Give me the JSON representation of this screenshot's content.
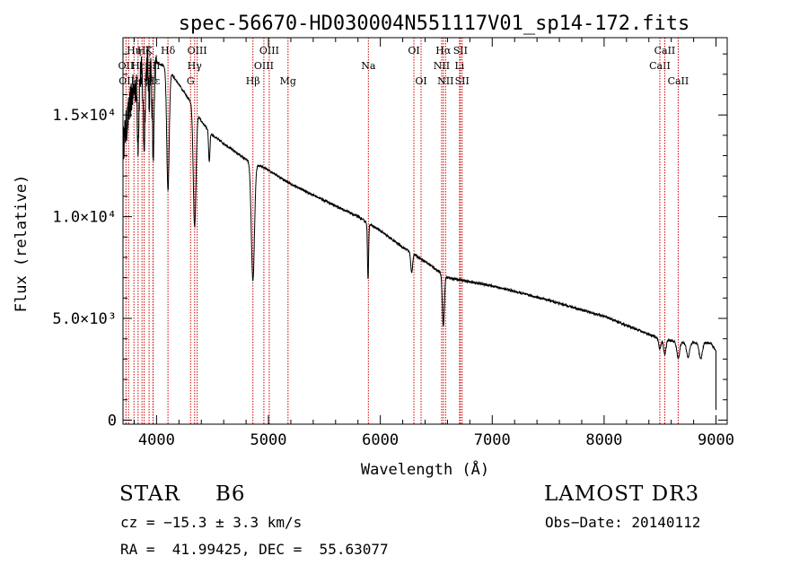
{
  "chart_data": {
    "type": "line",
    "title": "spec-56670-HD030004N551117V01_sp14-172.fits",
    "xlabel": "Wavelength (Å)",
    "ylabel": "Flux (relative)",
    "xlim": [
      3700,
      9100
    ],
    "ylim": [
      -200,
      18800
    ],
    "x_ticks": [
      4000,
      5000,
      6000,
      7000,
      8000,
      9000
    ],
    "x_tick_labels": [
      "4000",
      "5000",
      "6000",
      "7000",
      "8000",
      "9000"
    ],
    "y_ticks": [
      0,
      5000,
      10000,
      15000
    ],
    "y_tick_labels": [
      "0",
      "5.0×10³",
      "1.0×10⁴",
      "1.5×10⁴"
    ],
    "continuum": [
      [
        3700,
        13500
      ],
      [
        3780,
        16000
      ],
      [
        3900,
        17500
      ],
      [
        4000,
        17600
      ],
      [
        4100,
        17300
      ],
      [
        4200,
        16500
      ],
      [
        4300,
        15700
      ],
      [
        4400,
        14700
      ],
      [
        4500,
        14000
      ],
      [
        4700,
        13200
      ],
      [
        4800,
        12800
      ],
      [
        5000,
        12300
      ],
      [
        5200,
        11600
      ],
      [
        5500,
        10800
      ],
      [
        5800,
        10000
      ],
      [
        6000,
        9300
      ],
      [
        6200,
        8500
      ],
      [
        6400,
        7800
      ],
      [
        6600,
        7000
      ],
      [
        7000,
        6600
      ],
      [
        7500,
        5900
      ],
      [
        8000,
        5100
      ],
      [
        8500,
        4000
      ],
      [
        8700,
        3800
      ],
      [
        8950,
        3800
      ],
      [
        9000,
        3400
      ]
    ],
    "absorption_lines": [
      {
        "center": 3835,
        "depth": 3000,
        "width": 7
      },
      {
        "center": 3889,
        "depth": 3800,
        "width": 8
      },
      {
        "center": 3933,
        "depth": 2000,
        "width": 5
      },
      {
        "center": 3970,
        "depth": 4600,
        "width": 9
      },
      {
        "center": 4102,
        "depth": 6000,
        "width": 11
      },
      {
        "center": 4340,
        "depth": 5800,
        "width": 12
      },
      {
        "center": 4471,
        "depth": 1500,
        "width": 6
      },
      {
        "center": 4861,
        "depth": 5800,
        "width": 14
      },
      {
        "center": 5890,
        "depth": 2800,
        "width": 5
      },
      {
        "center": 6280,
        "depth": 1000,
        "width": 8
      },
      {
        "center": 6563,
        "depth": 2500,
        "width": 9
      },
      {
        "center": 8498,
        "depth": 500,
        "width": 10
      },
      {
        "center": 8542,
        "depth": 700,
        "width": 11
      },
      {
        "center": 8662,
        "depth": 800,
        "width": 12
      },
      {
        "center": 8750,
        "depth": 700,
        "width": 13
      },
      {
        "center": 8863,
        "depth": 800,
        "width": 14
      }
    ],
    "reference_lines": [
      {
        "wave": 3727,
        "label": "OII",
        "row": 2
      },
      {
        "wave": 3750,
        "label": "OIII",
        "row": 3
      },
      {
        "wave": 3798,
        "label": "Hη",
        "row": 1
      },
      {
        "wave": 3835,
        "label": "Hε",
        "row": 2
      },
      {
        "wave": 3870,
        "label": "Hγ",
        "row": 3
      },
      {
        "wave": 3889,
        "label": "Hζ",
        "row": 1
      },
      {
        "wave": 3933,
        "label": "K",
        "row": 1
      },
      {
        "wave": 3968,
        "label": "SII",
        "row": 2
      },
      {
        "wave": 3970,
        "label": "Hε",
        "row": 3
      },
      {
        "wave": 4102,
        "label": "Hδ",
        "row": 1
      },
      {
        "wave": 4304,
        "label": "G",
        "row": 3
      },
      {
        "wave": 4340,
        "label": "Hγ",
        "row": 2
      },
      {
        "wave": 4363,
        "label": "OIII",
        "row": 1
      },
      {
        "wave": 4861,
        "label": "Hβ",
        "row": 3
      },
      {
        "wave": 4959,
        "label": "OIII",
        "row": 2
      },
      {
        "wave": 5007,
        "label": "OIII",
        "row": 1
      },
      {
        "wave": 5175,
        "label": "Mg",
        "row": 3
      },
      {
        "wave": 5893,
        "label": "Na",
        "row": 2
      },
      {
        "wave": 6300,
        "label": "OI",
        "row": 1
      },
      {
        "wave": 6364,
        "label": "OI",
        "row": 3
      },
      {
        "wave": 6548,
        "label": "NII",
        "row": 2
      },
      {
        "wave": 6563,
        "label": "Hα",
        "row": 1
      },
      {
        "wave": 6583,
        "label": "NII",
        "row": 3
      },
      {
        "wave": 6708,
        "label": "Li",
        "row": 2
      },
      {
        "wave": 6716,
        "label": "SII",
        "row": 1
      },
      {
        "wave": 6731,
        "label": "SII",
        "row": 3
      },
      {
        "wave": 8498,
        "label": "CaII",
        "row": 2
      },
      {
        "wave": 8542,
        "label": "CaII",
        "row": 1
      },
      {
        "wave": 8662,
        "label": "CaII",
        "row": 3
      }
    ],
    "line_color": "#000000",
    "reference_line_color": "#cc0000"
  },
  "info": {
    "object_type": "STAR",
    "subclass": "B6",
    "survey": "LAMOST DR3",
    "cz": "cz = −15.3 ± 3.3 km/s",
    "obs_date": "Obs−Date: 20140112",
    "coords": "RA =  41.99425, DEC =  55.63077"
  }
}
